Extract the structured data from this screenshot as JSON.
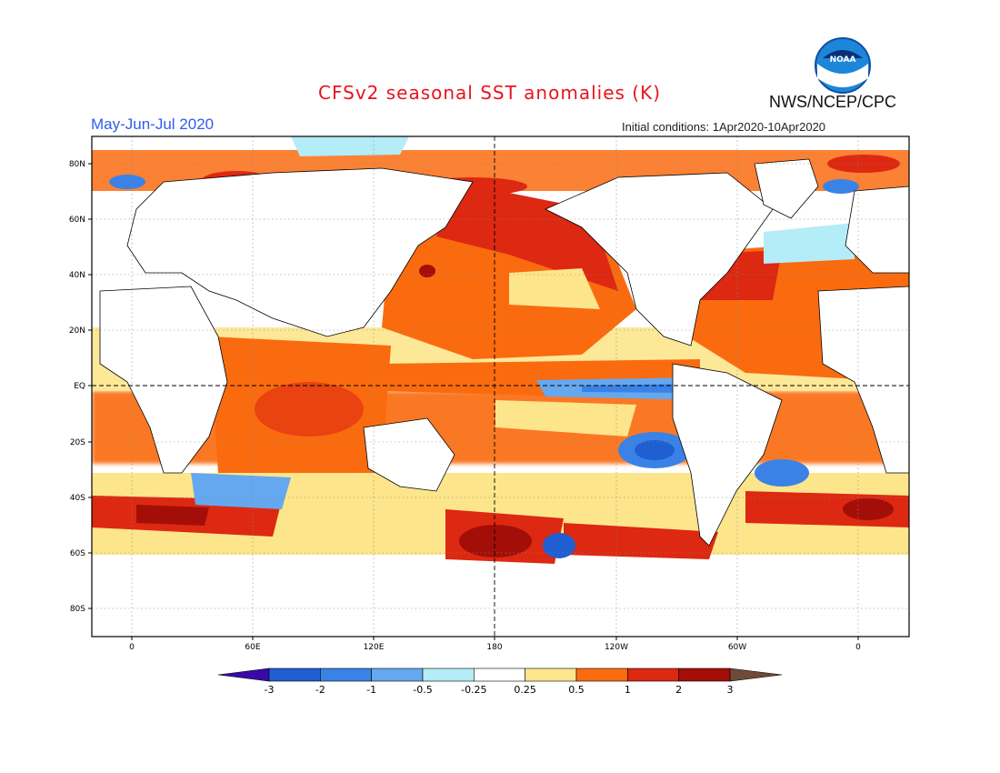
{
  "header": {
    "title": "CFSv2 seasonal SST anomalies (K)",
    "title_color": "#e8141e",
    "agency": "NWS/NCEP/CPC",
    "period": "May-Jun-Jul 2020",
    "period_color": "#2f5cf0",
    "initial_conditions": "Initial conditions: 1Apr2020-10Apr2020",
    "logo_text": "NOAA"
  },
  "map": {
    "lat_labels": [
      "80N",
      "60N",
      "40N",
      "20N",
      "EQ",
      "20S",
      "40S",
      "60S",
      "80S"
    ],
    "lon_labels": [
      "0",
      "60E",
      "120E",
      "180",
      "120W",
      "60W",
      "0"
    ]
  },
  "colorbar": {
    "labels": [
      "-3",
      "-2",
      "-1",
      "-0.5",
      "-0.25",
      "0.25",
      "0.5",
      "1",
      "2",
      "3"
    ],
    "colors": [
      "#3a0aa8",
      "#1f5fd2",
      "#3a82e6",
      "#65a8ef",
      "#b4ecf7",
      "#ffffff",
      "#fde58c",
      "#fa6b10",
      "#dd2812",
      "#a30f08",
      "#6e4a3a"
    ]
  }
}
